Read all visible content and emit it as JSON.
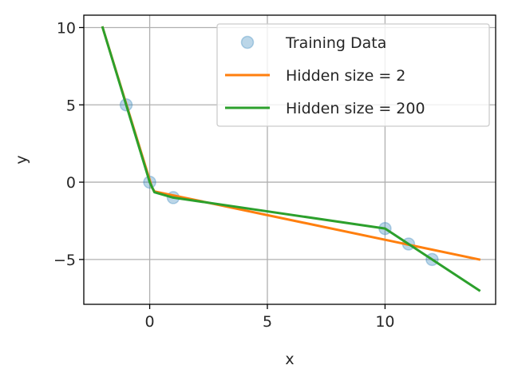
{
  "chart_data": {
    "type": "line",
    "title": "",
    "xlabel": "x",
    "ylabel": "y",
    "xlim": [
      -2.8,
      14.7
    ],
    "ylim": [
      -7.9,
      10.8
    ],
    "xticks": [
      0,
      5,
      10
    ],
    "yticks": [
      10,
      5,
      0,
      -5
    ],
    "xtick_labels": [
      "0",
      "5",
      "10"
    ],
    "ytick_labels": [
      "10",
      "5",
      "0",
      "−5"
    ],
    "grid": true,
    "legend_position": "top-right",
    "series": [
      {
        "name": "Training Data",
        "kind": "scatter",
        "color": "#1f77b4",
        "x": [
          -1,
          0,
          1,
          10,
          11,
          12
        ],
        "y": [
          5,
          0,
          -1,
          -3,
          -4,
          -5
        ]
      },
      {
        "name": "Hidden size = 2",
        "kind": "line",
        "color": "#ff7f0e",
        "x": [
          -2,
          0.1,
          0.2,
          14
        ],
        "y": [
          10,
          -0.35,
          -0.6,
          -5
        ]
      },
      {
        "name": "Hidden size = 200",
        "kind": "line",
        "color": "#2ca02c",
        "x": [
          -2,
          -1,
          0,
          0.2,
          1,
          10,
          11,
          12,
          14
        ],
        "y": [
          10,
          5,
          0,
          -0.65,
          -1,
          -3,
          -4,
          -5,
          -7
        ]
      }
    ]
  }
}
